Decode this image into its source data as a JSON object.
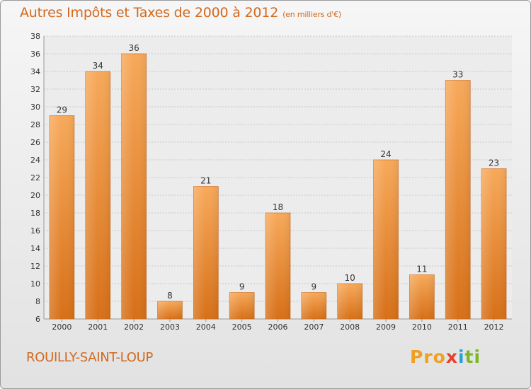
{
  "chart_data": {
    "type": "bar",
    "title": "Autres Impôts et Taxes de 2000 à 2012",
    "subtitle": "(en milliers d'€)",
    "categories": [
      "2000",
      "2001",
      "2002",
      "2003",
      "2004",
      "2005",
      "2006",
      "2007",
      "2008",
      "2009",
      "2010",
      "2011",
      "2012"
    ],
    "values": [
      29,
      34,
      36,
      8,
      21,
      9,
      18,
      9,
      10,
      24,
      11,
      33,
      23
    ],
    "ylim": [
      6,
      38
    ],
    "yticks": [
      6,
      8,
      10,
      12,
      14,
      16,
      18,
      20,
      22,
      24,
      26,
      28,
      30,
      32,
      34,
      36,
      38
    ],
    "grid": true,
    "bar_color": "#f0913a",
    "text_color": "#d2691e"
  },
  "footer": {
    "city": "ROUILLY-SAINT-LOUP",
    "logo_parts": [
      "Pro",
      "x",
      "i",
      "ti"
    ]
  }
}
